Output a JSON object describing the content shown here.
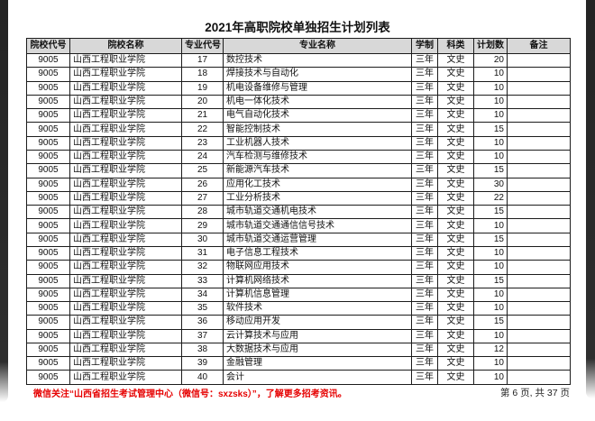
{
  "page": {
    "title": "2021年高职院校单独招生计划列表",
    "footer_notice": "微信关注“山西省招生考试管理中心（微信号：sxzsks）”，了解更多招考资讯。",
    "page_indicator": "第 6 页, 共 37 页"
  },
  "colors": {
    "header_bg": "#d8d8d8",
    "notice_red": "#e60000",
    "table_border": "#1c1c1c",
    "page_edge_dark": "#2e2e2e"
  },
  "table": {
    "columns": [
      "院校代号",
      "院校名称",
      "专业代号",
      "专业名称",
      "学制",
      "科类",
      "计划数",
      "备注"
    ],
    "rows": [
      [
        "9005",
        "山西工程职业学院",
        "17",
        "数控技术",
        "三年",
        "文史",
        "20",
        ""
      ],
      [
        "9005",
        "山西工程职业学院",
        "18",
        "焊接技术与自动化",
        "三年",
        "文史",
        "10",
        ""
      ],
      [
        "9005",
        "山西工程职业学院",
        "19",
        "机电设备维修与管理",
        "三年",
        "文史",
        "10",
        ""
      ],
      [
        "9005",
        "山西工程职业学院",
        "20",
        "机电一体化技术",
        "三年",
        "文史",
        "10",
        ""
      ],
      [
        "9005",
        "山西工程职业学院",
        "21",
        "电气自动化技术",
        "三年",
        "文史",
        "10",
        ""
      ],
      [
        "9005",
        "山西工程职业学院",
        "22",
        "智能控制技术",
        "三年",
        "文史",
        "15",
        ""
      ],
      [
        "9005",
        "山西工程职业学院",
        "23",
        "工业机器人技术",
        "三年",
        "文史",
        "10",
        ""
      ],
      [
        "9005",
        "山西工程职业学院",
        "24",
        "汽车检测与维修技术",
        "三年",
        "文史",
        "10",
        ""
      ],
      [
        "9005",
        "山西工程职业学院",
        "25",
        "新能源汽车技术",
        "三年",
        "文史",
        "15",
        ""
      ],
      [
        "9005",
        "山西工程职业学院",
        "26",
        "应用化工技术",
        "三年",
        "文史",
        "30",
        ""
      ],
      [
        "9005",
        "山西工程职业学院",
        "27",
        "工业分析技术",
        "三年",
        "文史",
        "22",
        ""
      ],
      [
        "9005",
        "山西工程职业学院",
        "28",
        "城市轨道交通机电技术",
        "三年",
        "文史",
        "15",
        ""
      ],
      [
        "9005",
        "山西工程职业学院",
        "29",
        "城市轨道交通通信信号技术",
        "三年",
        "文史",
        "10",
        ""
      ],
      [
        "9005",
        "山西工程职业学院",
        "30",
        "城市轨道交通运营管理",
        "三年",
        "文史",
        "15",
        ""
      ],
      [
        "9005",
        "山西工程职业学院",
        "31",
        "电子信息工程技术",
        "三年",
        "文史",
        "10",
        ""
      ],
      [
        "9005",
        "山西工程职业学院",
        "32",
        "物联网应用技术",
        "三年",
        "文史",
        "10",
        ""
      ],
      [
        "9005",
        "山西工程职业学院",
        "33",
        "计算机网络技术",
        "三年",
        "文史",
        "15",
        ""
      ],
      [
        "9005",
        "山西工程职业学院",
        "34",
        "计算机信息管理",
        "三年",
        "文史",
        "10",
        ""
      ],
      [
        "9005",
        "山西工程职业学院",
        "35",
        "软件技术",
        "三年",
        "文史",
        "10",
        ""
      ],
      [
        "9005",
        "山西工程职业学院",
        "36",
        "移动应用开发",
        "三年",
        "文史",
        "15",
        ""
      ],
      [
        "9005",
        "山西工程职业学院",
        "37",
        "云计算技术与应用",
        "三年",
        "文史",
        "10",
        ""
      ],
      [
        "9005",
        "山西工程职业学院",
        "38",
        "大数据技术与应用",
        "三年",
        "文史",
        "12",
        ""
      ],
      [
        "9005",
        "山西工程职业学院",
        "39",
        "金融管理",
        "三年",
        "文史",
        "10",
        ""
      ],
      [
        "9005",
        "山西工程职业学院",
        "40",
        "会计",
        "三年",
        "文史",
        "10",
        ""
      ]
    ]
  }
}
